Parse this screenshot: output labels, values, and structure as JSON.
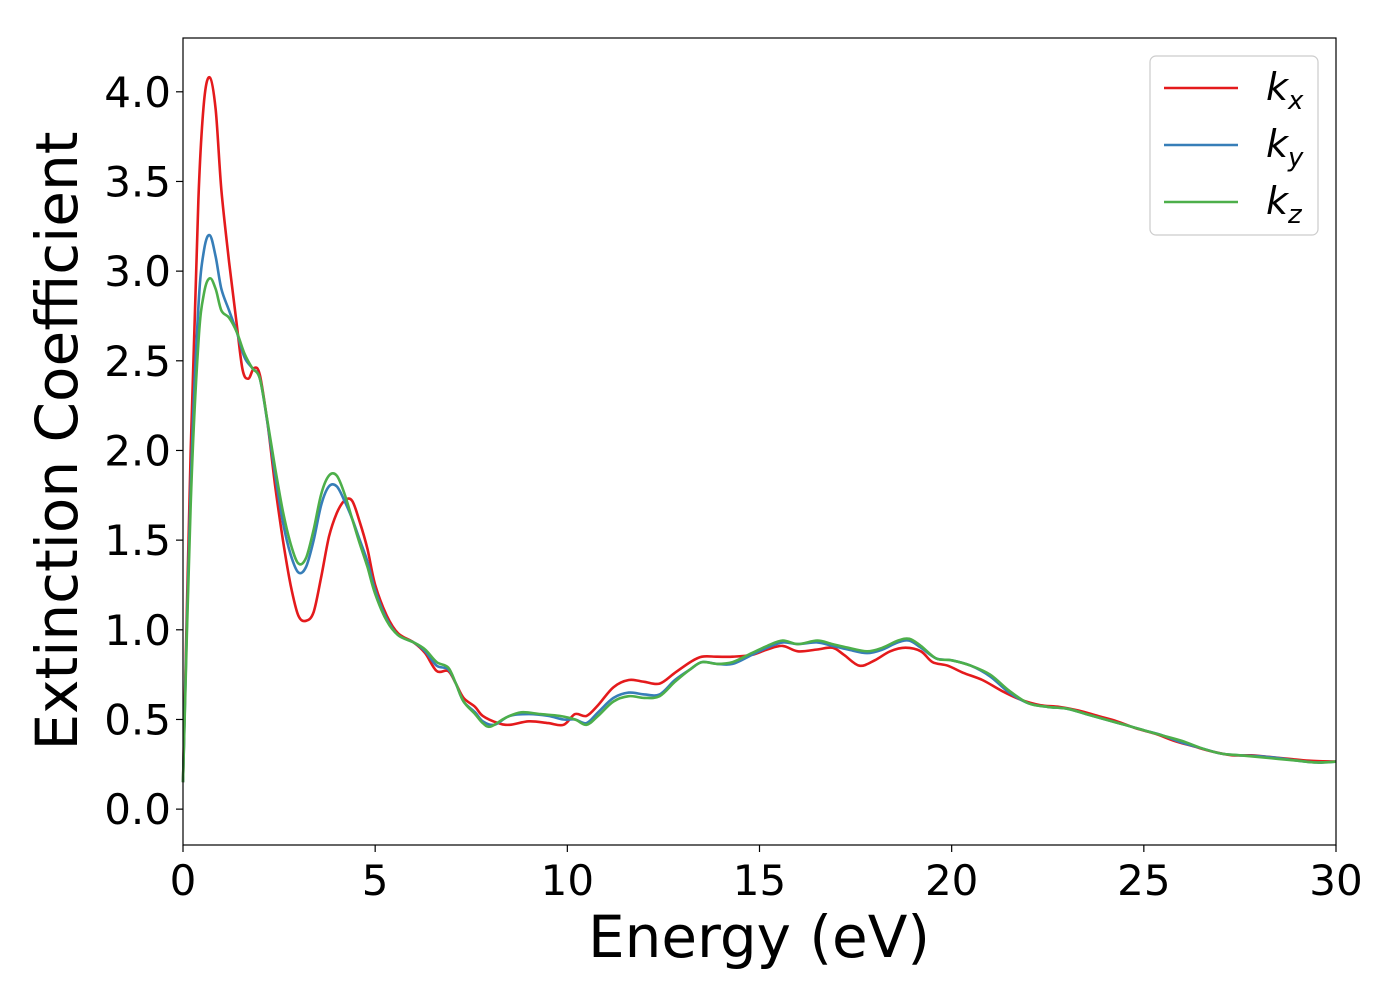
{
  "chart_data": {
    "type": "line",
    "title": "",
    "xlabel": "Energy (eV)",
    "ylabel": "Extinction Coefficient",
    "xlim": [
      0,
      30
    ],
    "ylim": [
      -0.2,
      4.3
    ],
    "xticks": [
      0,
      5,
      10,
      15,
      20,
      25,
      30
    ],
    "yticks": [
      0.0,
      0.5,
      1.0,
      1.5,
      2.0,
      2.5,
      3.0,
      3.5,
      4.0
    ],
    "grid": false,
    "legend_position": "top-right",
    "legend": [
      {
        "base": "k",
        "sub": "x",
        "color": "#e41a1c"
      },
      {
        "base": "k",
        "sub": "y",
        "color": "#377eb8"
      },
      {
        "base": "k",
        "sub": "z",
        "color": "#4daf4a"
      }
    ],
    "series": [
      {
        "name": "k_x",
        "color": "#e41a1c",
        "points": [
          [
            0,
            0.15
          ],
          [
            0.2,
            2.0
          ],
          [
            0.4,
            3.4
          ],
          [
            0.55,
            3.95
          ],
          [
            0.7,
            4.08
          ],
          [
            0.85,
            3.9
          ],
          [
            1.0,
            3.45
          ],
          [
            1.2,
            3.05
          ],
          [
            1.4,
            2.7
          ],
          [
            1.55,
            2.45
          ],
          [
            1.7,
            2.4
          ],
          [
            1.85,
            2.46
          ],
          [
            2.0,
            2.42
          ],
          [
            2.2,
            2.15
          ],
          [
            2.4,
            1.8
          ],
          [
            2.6,
            1.5
          ],
          [
            2.8,
            1.25
          ],
          [
            3.0,
            1.08
          ],
          [
            3.2,
            1.05
          ],
          [
            3.4,
            1.1
          ],
          [
            3.6,
            1.3
          ],
          [
            3.8,
            1.52
          ],
          [
            4.0,
            1.65
          ],
          [
            4.2,
            1.72
          ],
          [
            4.4,
            1.72
          ],
          [
            4.6,
            1.6
          ],
          [
            4.8,
            1.45
          ],
          [
            5.0,
            1.25
          ],
          [
            5.3,
            1.08
          ],
          [
            5.6,
            0.98
          ],
          [
            6.0,
            0.93
          ],
          [
            6.3,
            0.87
          ],
          [
            6.6,
            0.77
          ],
          [
            6.9,
            0.77
          ],
          [
            7.1,
            0.7
          ],
          [
            7.3,
            0.62
          ],
          [
            7.6,
            0.57
          ],
          [
            7.8,
            0.52
          ],
          [
            8.2,
            0.48
          ],
          [
            8.5,
            0.47
          ],
          [
            9.0,
            0.49
          ],
          [
            9.5,
            0.48
          ],
          [
            9.9,
            0.47
          ],
          [
            10.2,
            0.53
          ],
          [
            10.5,
            0.52
          ],
          [
            10.8,
            0.58
          ],
          [
            11.2,
            0.68
          ],
          [
            11.6,
            0.72
          ],
          [
            12.0,
            0.71
          ],
          [
            12.4,
            0.7
          ],
          [
            12.8,
            0.76
          ],
          [
            13.2,
            0.82
          ],
          [
            13.5,
            0.85
          ],
          [
            13.9,
            0.85
          ],
          [
            14.3,
            0.85
          ],
          [
            14.8,
            0.86
          ],
          [
            15.2,
            0.89
          ],
          [
            15.6,
            0.91
          ],
          [
            16.0,
            0.88
          ],
          [
            16.5,
            0.89
          ],
          [
            16.9,
            0.9
          ],
          [
            17.2,
            0.86
          ],
          [
            17.6,
            0.8
          ],
          [
            18.0,
            0.83
          ],
          [
            18.4,
            0.88
          ],
          [
            18.8,
            0.9
          ],
          [
            19.2,
            0.88
          ],
          [
            19.5,
            0.82
          ],
          [
            19.9,
            0.8
          ],
          [
            20.3,
            0.76
          ],
          [
            20.8,
            0.72
          ],
          [
            21.3,
            0.66
          ],
          [
            21.8,
            0.61
          ],
          [
            22.3,
            0.58
          ],
          [
            22.8,
            0.57
          ],
          [
            23.3,
            0.55
          ],
          [
            23.8,
            0.52
          ],
          [
            24.3,
            0.49
          ],
          [
            24.8,
            0.45
          ],
          [
            25.3,
            0.42
          ],
          [
            25.8,
            0.38
          ],
          [
            26.3,
            0.35
          ],
          [
            26.8,
            0.32
          ],
          [
            27.3,
            0.3
          ],
          [
            27.8,
            0.3
          ],
          [
            28.3,
            0.29
          ],
          [
            28.8,
            0.28
          ],
          [
            29.3,
            0.27
          ],
          [
            30.0,
            0.265
          ]
        ]
      },
      {
        "name": "k_y",
        "color": "#377eb8",
        "points": [
          [
            0,
            0.15
          ],
          [
            0.2,
            1.8
          ],
          [
            0.4,
            2.8
          ],
          [
            0.55,
            3.12
          ],
          [
            0.7,
            3.2
          ],
          [
            0.85,
            3.08
          ],
          [
            1.0,
            2.9
          ],
          [
            1.2,
            2.78
          ],
          [
            1.4,
            2.66
          ],
          [
            1.6,
            2.52
          ],
          [
            1.8,
            2.46
          ],
          [
            2.0,
            2.4
          ],
          [
            2.2,
            2.15
          ],
          [
            2.4,
            1.86
          ],
          [
            2.6,
            1.6
          ],
          [
            2.8,
            1.42
          ],
          [
            3.0,
            1.32
          ],
          [
            3.2,
            1.35
          ],
          [
            3.4,
            1.5
          ],
          [
            3.6,
            1.7
          ],
          [
            3.8,
            1.8
          ],
          [
            4.0,
            1.8
          ],
          [
            4.2,
            1.72
          ],
          [
            4.4,
            1.62
          ],
          [
            4.6,
            1.5
          ],
          [
            4.8,
            1.38
          ],
          [
            5.0,
            1.22
          ],
          [
            5.3,
            1.06
          ],
          [
            5.6,
            0.97
          ],
          [
            6.0,
            0.93
          ],
          [
            6.3,
            0.88
          ],
          [
            6.6,
            0.8
          ],
          [
            6.9,
            0.78
          ],
          [
            7.1,
            0.7
          ],
          [
            7.3,
            0.6
          ],
          [
            7.6,
            0.54
          ],
          [
            7.8,
            0.49
          ],
          [
            8.1,
            0.47
          ],
          [
            8.5,
            0.52
          ],
          [
            9.0,
            0.53
          ],
          [
            9.5,
            0.52
          ],
          [
            9.9,
            0.5
          ],
          [
            10.2,
            0.5
          ],
          [
            10.5,
            0.48
          ],
          [
            10.8,
            0.54
          ],
          [
            11.2,
            0.62
          ],
          [
            11.6,
            0.65
          ],
          [
            12.0,
            0.64
          ],
          [
            12.4,
            0.64
          ],
          [
            12.8,
            0.72
          ],
          [
            13.2,
            0.78
          ],
          [
            13.5,
            0.82
          ],
          [
            13.9,
            0.81
          ],
          [
            14.3,
            0.81
          ],
          [
            14.8,
            0.86
          ],
          [
            15.2,
            0.9
          ],
          [
            15.6,
            0.93
          ],
          [
            16.0,
            0.92
          ],
          [
            16.5,
            0.93
          ],
          [
            16.9,
            0.91
          ],
          [
            17.3,
            0.89
          ],
          [
            17.8,
            0.87
          ],
          [
            18.2,
            0.89
          ],
          [
            18.6,
            0.93
          ],
          [
            18.9,
            0.94
          ],
          [
            19.2,
            0.9
          ],
          [
            19.6,
            0.84
          ],
          [
            20.0,
            0.83
          ],
          [
            20.5,
            0.8
          ],
          [
            21.0,
            0.74
          ],
          [
            21.5,
            0.65
          ],
          [
            22.0,
            0.59
          ],
          [
            22.5,
            0.57
          ],
          [
            23.0,
            0.56
          ],
          [
            23.5,
            0.53
          ],
          [
            24.0,
            0.5
          ],
          [
            24.5,
            0.47
          ],
          [
            25.0,
            0.44
          ],
          [
            25.5,
            0.41
          ],
          [
            26.0,
            0.37
          ],
          [
            26.5,
            0.34
          ],
          [
            27.0,
            0.31
          ],
          [
            27.5,
            0.3
          ],
          [
            28.0,
            0.295
          ],
          [
            28.5,
            0.285
          ],
          [
            29.0,
            0.27
          ],
          [
            29.5,
            0.26
          ],
          [
            30.0,
            0.265
          ]
        ]
      },
      {
        "name": "k_z",
        "color": "#4daf4a",
        "points": [
          [
            0,
            0.15
          ],
          [
            0.2,
            1.7
          ],
          [
            0.4,
            2.6
          ],
          [
            0.55,
            2.88
          ],
          [
            0.7,
            2.96
          ],
          [
            0.85,
            2.9
          ],
          [
            1.0,
            2.78
          ],
          [
            1.2,
            2.74
          ],
          [
            1.4,
            2.66
          ],
          [
            1.6,
            2.54
          ],
          [
            1.8,
            2.46
          ],
          [
            2.0,
            2.4
          ],
          [
            2.2,
            2.16
          ],
          [
            2.4,
            1.9
          ],
          [
            2.6,
            1.66
          ],
          [
            2.8,
            1.48
          ],
          [
            3.0,
            1.37
          ],
          [
            3.2,
            1.4
          ],
          [
            3.4,
            1.56
          ],
          [
            3.6,
            1.76
          ],
          [
            3.8,
            1.86
          ],
          [
            4.0,
            1.86
          ],
          [
            4.2,
            1.76
          ],
          [
            4.4,
            1.62
          ],
          [
            4.6,
            1.48
          ],
          [
            4.8,
            1.35
          ],
          [
            5.0,
            1.2
          ],
          [
            5.3,
            1.05
          ],
          [
            5.6,
            0.97
          ],
          [
            6.0,
            0.93
          ],
          [
            6.3,
            0.89
          ],
          [
            6.6,
            0.82
          ],
          [
            6.9,
            0.79
          ],
          [
            7.1,
            0.7
          ],
          [
            7.3,
            0.6
          ],
          [
            7.6,
            0.53
          ],
          [
            7.8,
            0.48
          ],
          [
            8.0,
            0.46
          ],
          [
            8.4,
            0.51
          ],
          [
            8.8,
            0.54
          ],
          [
            9.3,
            0.53
          ],
          [
            9.8,
            0.52
          ],
          [
            10.2,
            0.5
          ],
          [
            10.5,
            0.47
          ],
          [
            10.8,
            0.52
          ],
          [
            11.2,
            0.6
          ],
          [
            11.6,
            0.63
          ],
          [
            12.0,
            0.62
          ],
          [
            12.4,
            0.63
          ],
          [
            12.8,
            0.71
          ],
          [
            13.2,
            0.78
          ],
          [
            13.5,
            0.82
          ],
          [
            13.9,
            0.81
          ],
          [
            14.3,
            0.82
          ],
          [
            14.8,
            0.87
          ],
          [
            15.2,
            0.91
          ],
          [
            15.6,
            0.94
          ],
          [
            16.0,
            0.92
          ],
          [
            16.5,
            0.94
          ],
          [
            16.9,
            0.92
          ],
          [
            17.3,
            0.9
          ],
          [
            17.8,
            0.88
          ],
          [
            18.2,
            0.9
          ],
          [
            18.6,
            0.94
          ],
          [
            18.9,
            0.95
          ],
          [
            19.2,
            0.91
          ],
          [
            19.6,
            0.84
          ],
          [
            20.0,
            0.83
          ],
          [
            20.5,
            0.8
          ],
          [
            21.0,
            0.75
          ],
          [
            21.5,
            0.66
          ],
          [
            22.0,
            0.59
          ],
          [
            22.5,
            0.57
          ],
          [
            23.0,
            0.56
          ],
          [
            23.5,
            0.53
          ],
          [
            24.0,
            0.5
          ],
          [
            24.5,
            0.47
          ],
          [
            25.0,
            0.44
          ],
          [
            25.5,
            0.41
          ],
          [
            26.0,
            0.38
          ],
          [
            26.5,
            0.34
          ],
          [
            27.0,
            0.31
          ],
          [
            27.5,
            0.3
          ],
          [
            28.0,
            0.29
          ],
          [
            28.5,
            0.28
          ],
          [
            29.0,
            0.27
          ],
          [
            29.5,
            0.26
          ],
          [
            30.0,
            0.265
          ]
        ]
      }
    ]
  }
}
